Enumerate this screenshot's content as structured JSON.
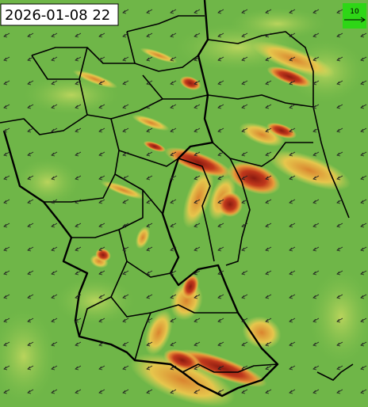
{
  "timestamp": "2026-01-08 22",
  "legend": {
    "label": "10"
  }
}
